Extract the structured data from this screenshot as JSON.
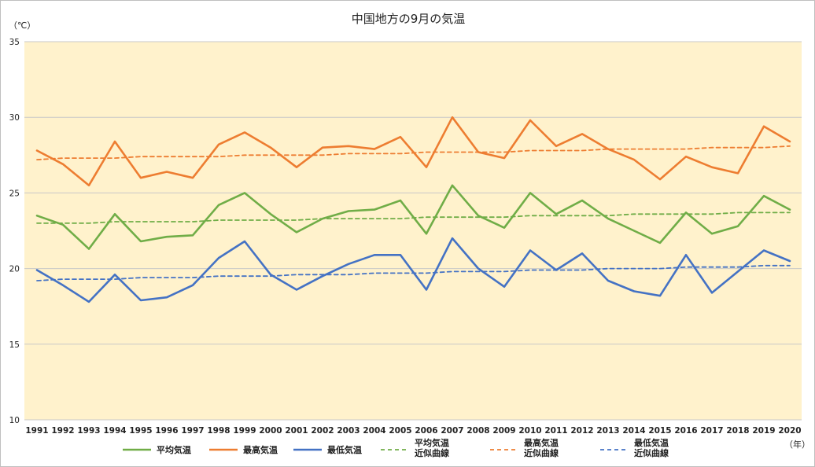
{
  "chart_data": {
    "type": "line",
    "title": "中国地方の9月の気温",
    "y_unit": "（℃）",
    "x_unit": "（年）",
    "ylim": [
      10,
      35
    ],
    "yticks": [
      10,
      15,
      20,
      25,
      30,
      35
    ],
    "grid": true,
    "legend_position": "bottom",
    "background_color": "#fff2cc",
    "x": [
      "1991",
      "1992",
      "1993",
      "1994",
      "1995",
      "1996",
      "1997",
      "1998",
      "1999",
      "2000",
      "2001",
      "2002",
      "2003",
      "2004",
      "2005",
      "2006",
      "2007",
      "2008",
      "2009",
      "2010",
      "2011",
      "2012",
      "2013",
      "2014",
      "2015",
      "2016",
      "2017",
      "2018",
      "2019",
      "2020"
    ],
    "series": [
      {
        "name": "平均気温",
        "color": "#70ad47",
        "style": "solid",
        "values": [
          23.5,
          22.9,
          21.3,
          23.6,
          21.8,
          22.1,
          22.2,
          24.2,
          25.0,
          23.6,
          22.4,
          23.3,
          23.8,
          23.9,
          24.5,
          22.3,
          25.5,
          23.5,
          22.7,
          25.0,
          23.6,
          24.5,
          23.3,
          22.5,
          21.7,
          23.7,
          22.3,
          22.8,
          24.8,
          23.9
        ]
      },
      {
        "name": "最高気温",
        "color": "#ed7d31",
        "style": "solid",
        "values": [
          27.8,
          26.9,
          25.5,
          28.4,
          26.0,
          26.4,
          26.0,
          28.2,
          29.0,
          28.0,
          26.7,
          28.0,
          28.1,
          27.9,
          28.7,
          26.7,
          30.0,
          27.7,
          27.3,
          29.8,
          28.1,
          28.9,
          27.9,
          27.2,
          25.9,
          27.4,
          26.7,
          26.3,
          29.4,
          28.4
        ]
      },
      {
        "name": "最低気温",
        "color": "#4472c4",
        "style": "solid",
        "values": [
          19.9,
          18.9,
          17.8,
          19.6,
          17.9,
          18.1,
          18.9,
          20.7,
          21.8,
          19.6,
          18.6,
          19.5,
          20.3,
          20.9,
          20.9,
          18.6,
          22.0,
          20.0,
          18.8,
          21.2,
          19.9,
          21.0,
          19.2,
          18.5,
          18.2,
          20.9,
          18.4,
          19.8,
          21.2,
          20.5
        ]
      },
      {
        "name": "平均気温 近似曲線",
        "color": "#70ad47",
        "style": "dashed",
        "values": [
          23.0,
          23.0,
          23.0,
          23.1,
          23.1,
          23.1,
          23.1,
          23.2,
          23.2,
          23.2,
          23.2,
          23.3,
          23.3,
          23.3,
          23.3,
          23.4,
          23.4,
          23.4,
          23.4,
          23.5,
          23.5,
          23.5,
          23.5,
          23.6,
          23.6,
          23.6,
          23.6,
          23.7,
          23.7,
          23.7
        ]
      },
      {
        "name": "最高気温 近似曲線",
        "color": "#ed7d31",
        "style": "dashed",
        "values": [
          27.2,
          27.3,
          27.3,
          27.3,
          27.4,
          27.4,
          27.4,
          27.4,
          27.5,
          27.5,
          27.5,
          27.5,
          27.6,
          27.6,
          27.6,
          27.7,
          27.7,
          27.7,
          27.7,
          27.8,
          27.8,
          27.8,
          27.9,
          27.9,
          27.9,
          27.9,
          28.0,
          28.0,
          28.0,
          28.1
        ]
      },
      {
        "name": "最低気温 近似曲線",
        "color": "#4472c4",
        "style": "dashed",
        "values": [
          19.2,
          19.3,
          19.3,
          19.3,
          19.4,
          19.4,
          19.4,
          19.5,
          19.5,
          19.5,
          19.6,
          19.6,
          19.6,
          19.7,
          19.7,
          19.7,
          19.8,
          19.8,
          19.8,
          19.9,
          19.9,
          19.9,
          20.0,
          20.0,
          20.0,
          20.1,
          20.1,
          20.1,
          20.2,
          20.2
        ]
      }
    ],
    "legend": [
      {
        "series": 0,
        "lines": [
          "平均気温"
        ]
      },
      {
        "series": 1,
        "lines": [
          "最高気温"
        ]
      },
      {
        "series": 2,
        "lines": [
          "最低気温"
        ]
      },
      {
        "series": 3,
        "lines": [
          "平均気温",
          "近似曲線"
        ]
      },
      {
        "series": 4,
        "lines": [
          "最高気温",
          "近似曲線"
        ]
      },
      {
        "series": 5,
        "lines": [
          "最低気温",
          "近似曲線"
        ]
      }
    ]
  }
}
